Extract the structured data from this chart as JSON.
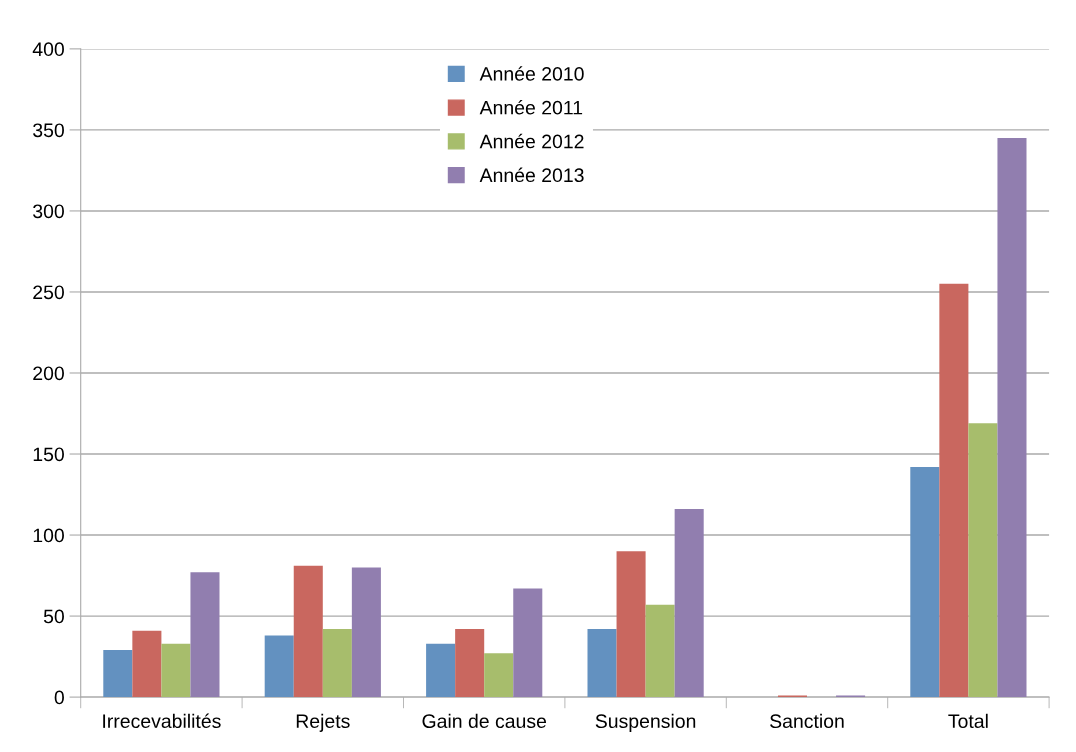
{
  "chart_data": {
    "type": "bar",
    "categories": [
      "Irrecevabilités",
      "Rejets",
      "Gain de cause",
      "Suspension",
      "Sanction",
      "Total"
    ],
    "series": [
      {
        "name": "Année 2010",
        "color": "#6391c0",
        "values": [
          29,
          38,
          33,
          42,
          0,
          142
        ]
      },
      {
        "name": "Année 2011",
        "color": "#c9675f",
        "values": [
          41,
          81,
          42,
          90,
          1,
          255
        ]
      },
      {
        "name": "Année 2012",
        "color": "#a7bd6c",
        "values": [
          33,
          42,
          27,
          57,
          0,
          169
        ]
      },
      {
        "name": "Année 2013",
        "color": "#917eaf",
        "values": [
          77,
          80,
          67,
          116,
          1,
          345
        ]
      }
    ],
    "ylim": [
      0,
      400
    ],
    "yticks": [
      0,
      50,
      100,
      150,
      200,
      250,
      300,
      350,
      400
    ],
    "grid": "y",
    "legend": "top"
  }
}
